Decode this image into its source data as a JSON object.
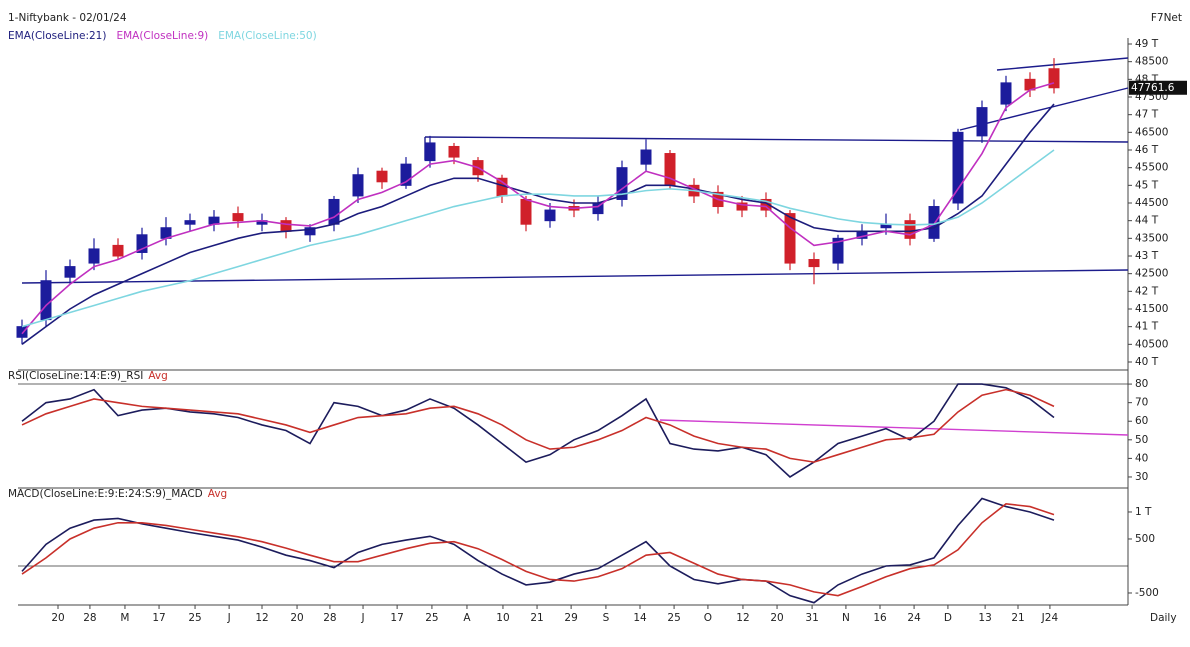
{
  "header": {
    "brand": "F7Net"
  },
  "chart_data": [
    {
      "type": "candlestick",
      "title": "1-Niftybank - 02/01/24",
      "up_color": "#1c1c9c",
      "down_color": "#d0202a",
      "open": [
        40700,
        41200,
        42400,
        42800,
        43300,
        43100,
        43500,
        43900,
        43900,
        44200,
        43900,
        44000,
        43600,
        43900,
        44700,
        45400,
        45000,
        45700,
        46100,
        45700,
        45200,
        44600,
        44000,
        44400,
        44200,
        44600,
        45600,
        45900,
        45000,
        44800,
        44500,
        44600,
        44200,
        42900,
        42800,
        43500,
        43800,
        44000,
        43500,
        44500,
        46400,
        47300,
        48000,
        48300
      ],
      "high": [
        41200,
        42600,
        42900,
        43500,
        43500,
        43800,
        44100,
        44200,
        44300,
        44400,
        44200,
        44100,
        43900,
        44700,
        45500,
        45500,
        45800,
        46400,
        46200,
        45800,
        45300,
        44700,
        44500,
        44600,
        44700,
        45700,
        46300,
        46000,
        45200,
        45000,
        44700,
        44800,
        44300,
        43100,
        43600,
        43900,
        44200,
        44200,
        44600,
        46600,
        47400,
        48100,
        48200,
        48600
      ],
      "low": [
        40500,
        41000,
        42200,
        42600,
        42900,
        42900,
        43300,
        43700,
        43700,
        43800,
        43700,
        43500,
        43400,
        43700,
        44500,
        44900,
        44900,
        45500,
        45600,
        45100,
        44500,
        43700,
        43800,
        44100,
        44000,
        44400,
        45400,
        44900,
        44500,
        44200,
        44100,
        44100,
        42600,
        42200,
        42600,
        43300,
        43600,
        43300,
        43400,
        44300,
        46200,
        47100,
        47500,
        47600
      ],
      "close": [
        41000,
        42300,
        42700,
        43200,
        43000,
        43600,
        43800,
        44000,
        44100,
        44000,
        44000,
        43700,
        43800,
        44600,
        45300,
        45100,
        45600,
        46200,
        45800,
        45300,
        44700,
        43900,
        44300,
        44300,
        44500,
        45500,
        46000,
        45000,
        44700,
        44400,
        44300,
        44300,
        42800,
        42700,
        43500,
        43700,
        43900,
        43500,
        44400,
        46500,
        47200,
        47900,
        47700,
        47761.6
      ],
      "series": [
        {
          "name": "EMA(CloseLine:21)",
          "color": "#1c1c7c",
          "values": [
            40500,
            41000,
            41500,
            41900,
            42200,
            42500,
            42800,
            43100,
            43300,
            43500,
            43650,
            43700,
            43750,
            43900,
            44200,
            44400,
            44700,
            45000,
            45200,
            45200,
            45000,
            44800,
            44600,
            44500,
            44500,
            44700,
            45000,
            45000,
            44900,
            44750,
            44600,
            44500,
            44100,
            43800,
            43700,
            43700,
            43700,
            43700,
            43800,
            44200,
            44700,
            45600,
            46500,
            47300
          ]
        },
        {
          "name": "EMA(CloseLine:9)",
          "color": "#c030c0",
          "values": [
            40800,
            41600,
            42200,
            42700,
            42900,
            43200,
            43500,
            43700,
            43900,
            43950,
            44000,
            43900,
            43850,
            44100,
            44600,
            44800,
            45100,
            45600,
            45700,
            45500,
            45100,
            44600,
            44400,
            44350,
            44400,
            44900,
            45400,
            45200,
            44900,
            44600,
            44450,
            44400,
            43800,
            43300,
            43400,
            43550,
            43700,
            43600,
            43900,
            44900,
            45900,
            47200,
            47700,
            47900
          ]
        },
        {
          "name": "EMA(CloseLine:50)",
          "color": "#7ed6e0",
          "values": [
            41000,
            41200,
            41400,
            41600,
            41800,
            42000,
            42150,
            42300,
            42500,
            42700,
            42900,
            43100,
            43300,
            43450,
            43600,
            43800,
            44000,
            44200,
            44400,
            44550,
            44700,
            44750,
            44750,
            44700,
            44700,
            44750,
            44850,
            44900,
            44850,
            44750,
            44650,
            44550,
            44350,
            44200,
            44050,
            43950,
            43900,
            43880,
            43900,
            44100,
            44500,
            45000,
            45500,
            46000
          ]
        }
      ],
      "ylim": [
        39830,
        49170
      ],
      "yticks": [
        {
          "value": 40000,
          "label": "40 T"
        },
        40500,
        {
          "value": 41000,
          "label": "41 T"
        },
        41500,
        {
          "value": 42000,
          "label": "42 T"
        },
        42500,
        {
          "value": 43000,
          "label": "43 T"
        },
        43500,
        {
          "value": 44000,
          "label": "44 T"
        },
        44500,
        {
          "value": 45000,
          "label": "45 T"
        },
        45500,
        {
          "value": 46000,
          "label": "46 T"
        },
        46500,
        {
          "value": 47000,
          "label": "47 T"
        },
        47500,
        {
          "value": 48000,
          "label": "48 T"
        },
        48500,
        {
          "value": 49000,
          "label": "49 T"
        }
      ]
    },
    {
      "type": "line",
      "series": [
        {
          "name": "RSI(CloseLine:14:E:9)_RSI",
          "color": "#1c1c5c",
          "values": [
            60,
            70,
            72,
            77,
            63,
            66,
            67,
            65,
            64,
            62,
            58,
            55,
            48,
            70,
            68,
            63,
            66,
            72,
            67,
            58,
            48,
            38,
            42,
            50,
            55,
            63,
            72,
            48,
            45,
            44,
            46,
            42,
            30,
            38,
            48,
            52,
            56,
            50,
            60,
            80,
            80,
            78,
            72,
            62
          ]
        },
        {
          "name": "Avg",
          "color": "#c8302a",
          "values": [
            58,
            64,
            68,
            72,
            70,
            68,
            67,
            66,
            65,
            64,
            61,
            58,
            54,
            58,
            62,
            63,
            64,
            67,
            68,
            64,
            58,
            50,
            45,
            46,
            50,
            55,
            62,
            58,
            52,
            48,
            46,
            45,
            40,
            38,
            42,
            46,
            50,
            51,
            53,
            65,
            74,
            77,
            74,
            68
          ]
        }
      ],
      "ylim": [
        24.6,
        86.5
      ],
      "yticks": [
        30,
        40,
        50,
        60,
        70,
        80
      ]
    },
    {
      "type": "line",
      "series": [
        {
          "name": "MACD(CloseLine:E:9:E:24:S:9)_MACD",
          "color": "#1c1c5c",
          "values": [
            -100,
            400,
            700,
            850,
            880,
            780,
            700,
            620,
            550,
            480,
            350,
            200,
            100,
            -30,
            250,
            400,
            480,
            550,
            400,
            100,
            -150,
            -350,
            -300,
            -150,
            -50,
            200,
            450,
            0,
            -250,
            -330,
            -250,
            -280,
            -550,
            -680,
            -350,
            -150,
            0,
            20,
            150,
            750,
            1250,
            1100,
            1000,
            850
          ]
        },
        {
          "name": "Avg",
          "color": "#c8302a",
          "values": [
            -150,
            150,
            500,
            700,
            800,
            800,
            750,
            680,
            610,
            540,
            450,
            330,
            200,
            80,
            80,
            200,
            320,
            420,
            450,
            320,
            120,
            -100,
            -250,
            -280,
            -200,
            -50,
            200,
            250,
            50,
            -150,
            -250,
            -280,
            -350,
            -480,
            -550,
            -380,
            -200,
            -50,
            20,
            300,
            800,
            1150,
            1100,
            950
          ]
        }
      ],
      "ylim": [
        -704,
        1407
      ],
      "yticks": [
        -500,
        500,
        {
          "value": 1000,
          "label": "1 T"
        }
      ],
      "xlabel": "Daily",
      "xticks": [
        {
          "value": 1.5,
          "label": "20"
        },
        {
          "value": 2.83,
          "label": "28"
        },
        {
          "value": 4.29,
          "label": "M"
        },
        {
          "value": 5.71,
          "label": "17"
        },
        {
          "value": 7.21,
          "label": "25"
        },
        {
          "value": 8.63,
          "label": "J"
        },
        {
          "value": 10,
          "label": "12"
        },
        {
          "value": 11.46,
          "label": "20"
        },
        {
          "value": 12.83,
          "label": "28"
        },
        {
          "value": 14.21,
          "label": "J"
        },
        {
          "value": 15.63,
          "label": "17"
        },
        {
          "value": 17.08,
          "label": "25"
        },
        {
          "value": 18.54,
          "label": "A"
        },
        {
          "value": 20.04,
          "label": "10"
        },
        {
          "value": 21.46,
          "label": "21"
        },
        {
          "value": 22.88,
          "label": "29"
        },
        {
          "value": 24.33,
          "label": "S"
        },
        {
          "value": 25.75,
          "label": "14"
        },
        {
          "value": 27.17,
          "label": "25"
        },
        {
          "value": 28.58,
          "label": "O"
        },
        {
          "value": 30.04,
          "label": "12"
        },
        {
          "value": 31.46,
          "label": "20"
        },
        {
          "value": 32.92,
          "label": "31"
        },
        {
          "value": 34.33,
          "label": "N"
        },
        {
          "value": 35.75,
          "label": "16"
        },
        {
          "value": 37.17,
          "label": "24"
        },
        {
          "value": 38.58,
          "label": "D"
        },
        {
          "value": 40.13,
          "label": "13"
        },
        {
          "value": 41.5,
          "label": "21"
        },
        {
          "value": 42.83,
          "label": "J24"
        }
      ]
    }
  ]
}
